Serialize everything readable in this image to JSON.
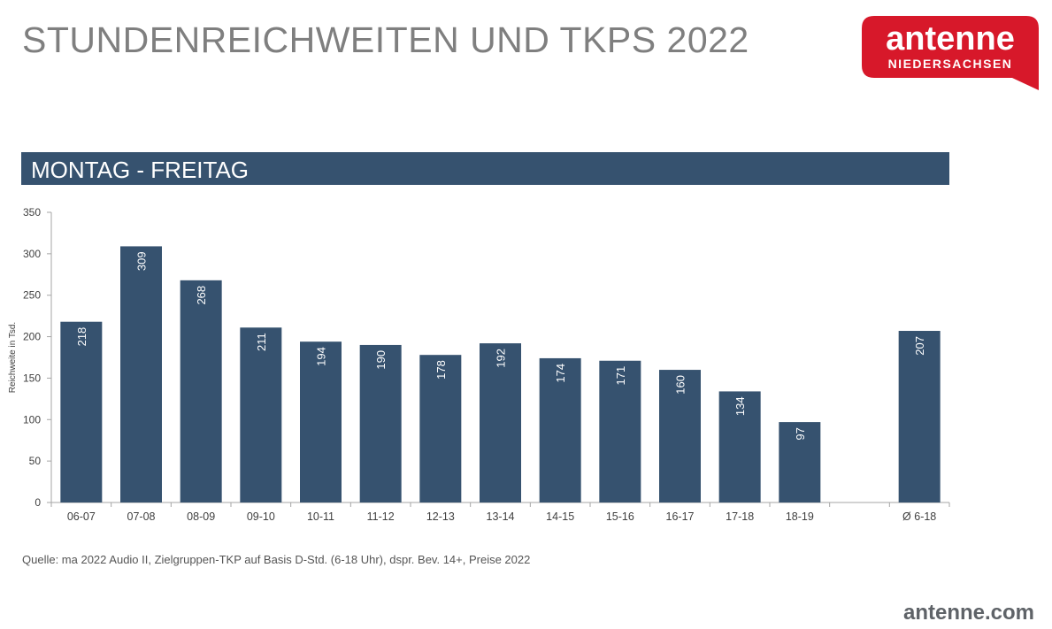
{
  "title": "STUNDENREICHWEITEN UND TKPS 2022",
  "logo": {
    "line1": "antenne",
    "line2": "NIEDERSACHSEN",
    "color": "#d7182a"
  },
  "section": "MONTAG - FREITAG",
  "colors": {
    "bar": "#36526f",
    "band": "#36526f",
    "title": "#7f7f7f"
  },
  "chart_data": {
    "type": "bar",
    "categories": [
      "06-07",
      "07-08",
      "08-09",
      "09-10",
      "10-11",
      "11-12",
      "12-13",
      "13-14",
      "14-15",
      "15-16",
      "16-17",
      "17-18",
      "18-19",
      "",
      "Ø 6-18"
    ],
    "values": [
      218,
      309,
      268,
      211,
      194,
      190,
      178,
      192,
      174,
      171,
      160,
      134,
      97,
      null,
      207
    ],
    "ylabel": "Reichweite in Tsd.",
    "ylim": [
      0,
      350
    ],
    "yticks": [
      0,
      50,
      100,
      150,
      200,
      250,
      300,
      350
    ],
    "grid": false,
    "data_labels": "inside-top, rotated"
  },
  "source": "Quelle: ma 2022 Audio II, Zielgruppen-TKP auf Basis D-Std. (6-18 Uhr), dspr. Bev. 14+, Preise 2022",
  "site": "antenne.com"
}
